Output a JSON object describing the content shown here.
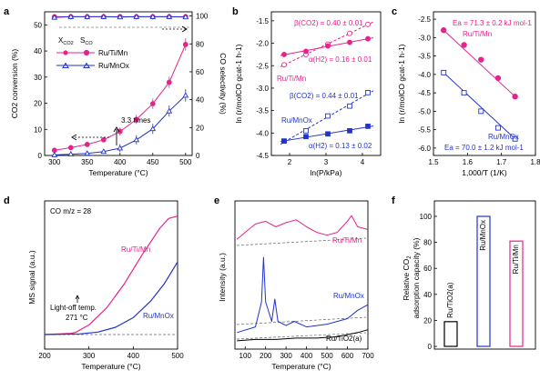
{
  "colors": {
    "ru_ti_mn": "#e6238c",
    "ru_mnox": "#2233cc",
    "black": "#000000",
    "grey": "#888888"
  },
  "chart_data": [
    {
      "panel": "a",
      "type": "line",
      "xlabel": "Temperature (°C)",
      "ylabel": "CO2 conversion (%)",
      "y2label": "CO selectivity (%)",
      "xlim": [
        285,
        510
      ],
      "ylim": [
        0,
        55
      ],
      "y2lim": [
        0,
        103
      ],
      "xticks": [
        300,
        350,
        400,
        450,
        500
      ],
      "yticks": [
        0,
        10,
        20,
        30,
        40,
        50
      ],
      "y2ticks": [
        0,
        20,
        40,
        60,
        80,
        100
      ],
      "legend_header": [
        "X",
        "S"
      ],
      "legend_header_sub": [
        "CO2",
        "CO"
      ],
      "legend": [
        "Ru/Ti/Mn",
        "Ru/MnOx"
      ],
      "annotation": "3.3 times",
      "series": [
        {
          "name": "Ru/Ti/Mn",
          "metric": "conversion",
          "x": [
            300,
            325,
            350,
            375,
            400,
            425,
            450,
            475,
            500
          ],
          "y": [
            2.0,
            3.0,
            4.2,
            6.0,
            9.2,
            13.8,
            19.8,
            28.0,
            42.5
          ]
        },
        {
          "name": "Ru/MnOx",
          "metric": "conversion",
          "x": [
            300,
            325,
            350,
            375,
            400,
            425,
            450,
            475,
            500
          ],
          "y": [
            0.2,
            0.5,
            0.8,
            1.5,
            2.8,
            6.0,
            10.2,
            17.0,
            23.0
          ]
        },
        {
          "name": "Ru/Ti/Mn",
          "metric": "selectivity",
          "x": [
            300,
            325,
            350,
            375,
            400,
            425,
            450,
            475,
            500
          ],
          "y": [
            99.5,
            99.5,
            99.5,
            99.5,
            99.5,
            99.5,
            99.5,
            99.5,
            99.5
          ]
        },
        {
          "name": "Ru/MnOx",
          "metric": "selectivity",
          "x": [
            300,
            325,
            350,
            375,
            400,
            425,
            450,
            475,
            500
          ],
          "y": [
            99.0,
            99.5,
            99.5,
            99.5,
            99.3,
            99.5,
            99.5,
            99.5,
            99.3
          ]
        }
      ]
    },
    {
      "panel": "b",
      "type": "scatter",
      "xlabel": "ln(P/kPa)",
      "ylabel": "ln (r/molCO gcat-1 h-1)",
      "xlim": [
        1.5,
        4.5
      ],
      "ylim": [
        -4.5,
        -1.3
      ],
      "xticks": [
        2,
        3,
        4
      ],
      "yticks": [
        -1.5,
        -2.0,
        -2.5,
        -3.0,
        -3.5,
        -4.0,
        -4.5
      ],
      "annotations": [
        "β(CO2) = 0.40 ± 0.01",
        "α(H2) = 0.16 ± 0.01",
        "β(CO2) = 0.44 ± 0.01",
        "α(H2) = 0.13 ± 0.02"
      ],
      "labels": [
        "Ru/Ti/Mn",
        "Ru/MnOx"
      ],
      "series": [
        {
          "name": "Ru/Ti/Mn CO2",
          "x": [
            1.85,
            2.45,
            3.05,
            3.65,
            4.15
          ],
          "y": [
            -2.48,
            -2.25,
            -2.02,
            -1.78,
            -1.58
          ]
        },
        {
          "name": "Ru/Ti/Mn H2",
          "x": [
            1.85,
            2.45,
            3.05,
            3.65,
            4.15
          ],
          "y": [
            -2.25,
            -2.18,
            -2.06,
            -1.98,
            -1.9
          ]
        },
        {
          "name": "Ru/MnOx CO2",
          "x": [
            1.85,
            2.45,
            3.05,
            3.65,
            4.15
          ],
          "y": [
            -4.18,
            -3.95,
            -3.62,
            -3.4,
            -3.1
          ]
        },
        {
          "name": "Ru/MnOx H2",
          "x": [
            1.85,
            2.45,
            3.05,
            3.65,
            4.15
          ],
          "y": [
            -4.18,
            -4.08,
            -4.02,
            -3.95,
            -3.85
          ]
        }
      ]
    },
    {
      "panel": "c",
      "type": "scatter",
      "xlabel": "1,000/T (1/K)",
      "ylabel": "ln (r/molCO gcat-1 h-1)",
      "xlim": [
        1.5,
        1.8
      ],
      "ylim": [
        -6.2,
        -2.3
      ],
      "xticks": [
        1.5,
        1.6,
        1.7,
        1.8
      ],
      "yticks": [
        -2.5,
        -3.0,
        -3.5,
        -4.0,
        -4.5,
        -5.0,
        -5.5,
        -6.0
      ],
      "annotations": [
        "Ea = 71.3 ± 0.2 kJ mol-1",
        "Ea = 70.0 ± 1.2 kJ mol-1"
      ],
      "labels": [
        "Ru/Ti/Mn",
        "Ru/MnOx"
      ],
      "series": [
        {
          "name": "Ru/Ti/Mn",
          "x": [
            1.53,
            1.59,
            1.64,
            1.69,
            1.74
          ],
          "y": [
            -2.8,
            -3.2,
            -3.6,
            -4.1,
            -4.6
          ]
        },
        {
          "name": "Ru/MnOx",
          "x": [
            1.53,
            1.59,
            1.64,
            1.69,
            1.74
          ],
          "y": [
            -3.95,
            -4.5,
            -5.0,
            -5.45,
            -5.75
          ]
        }
      ]
    },
    {
      "panel": "d",
      "type": "line",
      "xlabel": "Temperature (°C)",
      "ylabel": "MS signal (a.u.)",
      "xlim": [
        200,
        500
      ],
      "xticks": [
        200,
        300,
        400,
        500
      ],
      "annotations": [
        "CO m/z = 28",
        "Light-off temp.",
        "271 °C"
      ],
      "labels": [
        "Ru/Ti/Mn",
        "Ru/MnOx"
      ],
      "series": [
        {
          "name": "Ru/Ti/Mn",
          "x": [
            200,
            260,
            271,
            300,
            340,
            380,
            420,
            460,
            480,
            500
          ],
          "y": [
            0.0,
            0.01,
            0.02,
            0.08,
            0.22,
            0.42,
            0.66,
            0.88,
            0.96,
            0.98
          ]
        },
        {
          "name": "Ru/MnOx",
          "x": [
            200,
            280,
            320,
            360,
            400,
            440,
            470,
            500
          ],
          "y": [
            0.0,
            0.005,
            0.02,
            0.06,
            0.14,
            0.28,
            0.42,
            0.6
          ]
        }
      ]
    },
    {
      "panel": "e",
      "type": "line",
      "xlabel": "Temperature (°C)",
      "ylabel": "Intensity (a.u.)",
      "xlim": [
        50,
        700
      ],
      "xticks": [
        100,
        200,
        300,
        400,
        500,
        600,
        700
      ],
      "labels": [
        "Ru/Ti/Mn",
        "Ru/MnOx",
        "Ru/TiO2(a)"
      ],
      "series": [
        {
          "name": "Ru/Ti/Mn",
          "x": [
            60,
            100,
            150,
            200,
            250,
            300,
            350,
            400,
            450,
            500,
            550,
            600,
            620,
            650,
            700
          ],
          "y": [
            0.75,
            0.8,
            0.86,
            0.88,
            0.84,
            0.87,
            0.89,
            0.84,
            0.8,
            0.78,
            0.8,
            0.88,
            0.92,
            0.84,
            0.82
          ]
        },
        {
          "name": "Ru/MnOx",
          "x": [
            60,
            150,
            180,
            190,
            200,
            230,
            245,
            260,
            300,
            340,
            400,
            500,
            600,
            650,
            700
          ],
          "y": [
            0.08,
            0.12,
            0.3,
            0.62,
            0.3,
            0.16,
            0.32,
            0.16,
            0.13,
            0.16,
            0.12,
            0.14,
            0.18,
            0.24,
            0.28
          ]
        },
        {
          "name": "Ru/TiO2(a)",
          "x": [
            60,
            150,
            250,
            350,
            450,
            550,
            650,
            700
          ],
          "y": [
            0.02,
            0.03,
            0.03,
            0.04,
            0.04,
            0.05,
            0.08,
            0.1
          ]
        }
      ]
    },
    {
      "panel": "f",
      "type": "bar",
      "ylabel": "Relative CO2 adsorption capacity (%)",
      "ylim": [
        0,
        100
      ],
      "yticks": [
        0,
        20,
        40,
        60,
        80,
        100
      ],
      "categories": [
        "Ru/TiO2(a)",
        "Ru/MnOx",
        "Ru/Ti/Mn"
      ],
      "values": [
        19,
        100,
        81
      ]
    }
  ]
}
